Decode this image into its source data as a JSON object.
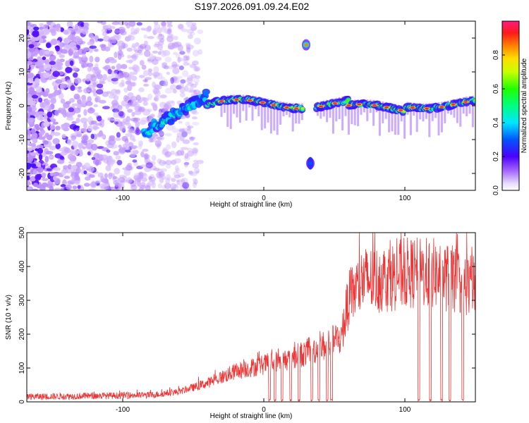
{
  "chart_data": [
    {
      "type": "heatmap",
      "title": "S197.2026.091.09.24.E02",
      "xlabel": "Height of straight line (km)",
      "ylabel": "Frequency (Hz)",
      "xlim": [
        -168,
        150
      ],
      "ylim": [
        -25,
        25
      ],
      "x_ticks": [
        -100,
        0,
        100
      ],
      "y_ticks": [
        -20,
        -10,
        0,
        10,
        20
      ],
      "colorbar": {
        "label": "Normalized spectral amplitude",
        "range": [
          0,
          1
        ],
        "ticks": [
          "0.0",
          "0.2",
          "0.4",
          "0.6",
          "0.8"
        ]
      },
      "features": {
        "noise_region_x": [
          -168,
          -55
        ],
        "ridge_rise": {
          "x": [
            -85,
            -40
          ],
          "freq": [
            -8,
            3
          ]
        },
        "ridge_steady": {
          "x": [
            -40,
            150
          ],
          "freq": [
            -2,
            2
          ]
        },
        "gap_x": [
          28,
          37
        ],
        "side_components": [
          {
            "x": 30,
            "freq": 18
          },
          {
            "x": 33,
            "freq": -17
          }
        ]
      }
    },
    {
      "type": "line",
      "series_name": "SNR",
      "xlabel": "Height of straight line (km)",
      "ylabel": "SNR (10 * v/v)",
      "xlim": [
        -168,
        150
      ],
      "ylim": [
        0,
        500
      ],
      "x_ticks": [
        -100,
        0,
        100
      ],
      "y_ticks": [
        0,
        100,
        200,
        300,
        400,
        500
      ],
      "color": "#ee3333",
      "trend": {
        "x": [
          -168,
          -80,
          -60,
          -40,
          -20,
          0,
          20,
          40,
          55,
          60,
          70,
          80,
          100,
          120,
          150
        ],
        "y": [
          15,
          20,
          30,
          55,
          90,
          110,
          130,
          160,
          190,
          300,
          360,
          360,
          380,
          380,
          340
        ]
      },
      "dropouts_x": [
        4,
        8,
        13,
        19,
        25,
        34,
        39,
        45,
        48,
        110,
        118,
        126,
        132,
        141
      ]
    }
  ]
}
